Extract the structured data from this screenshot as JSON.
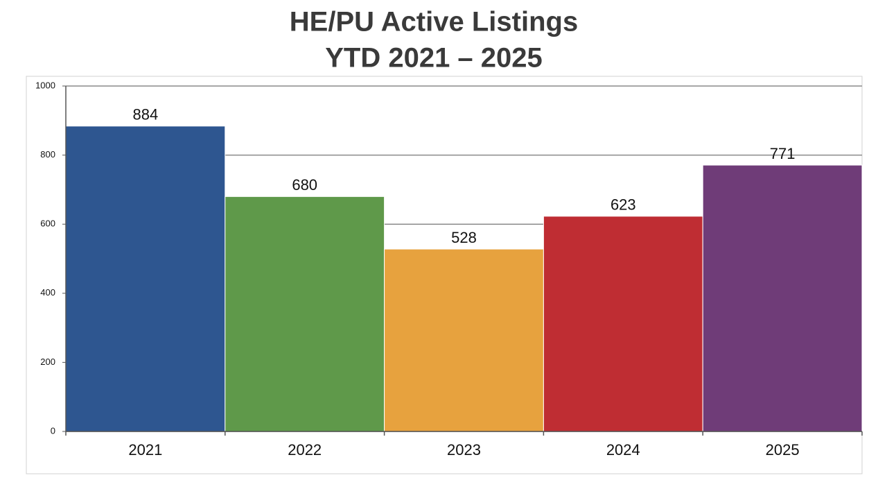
{
  "chart_data": {
    "type": "bar",
    "title": "HE/PU Active Listings",
    "subtitle": "YTD 2021 – 2025",
    "categories": [
      "2021",
      "2022",
      "2023",
      "2024",
      "2025"
    ],
    "values": [
      884,
      680,
      528,
      623,
      771
    ],
    "colors": [
      "#2e5690",
      "#5f994a",
      "#e7a23e",
      "#bf2d33",
      "#6f3c78"
    ],
    "ylim": [
      0,
      1000
    ],
    "yticks": [
      0,
      200,
      400,
      600,
      800,
      1000
    ],
    "grid": true
  }
}
